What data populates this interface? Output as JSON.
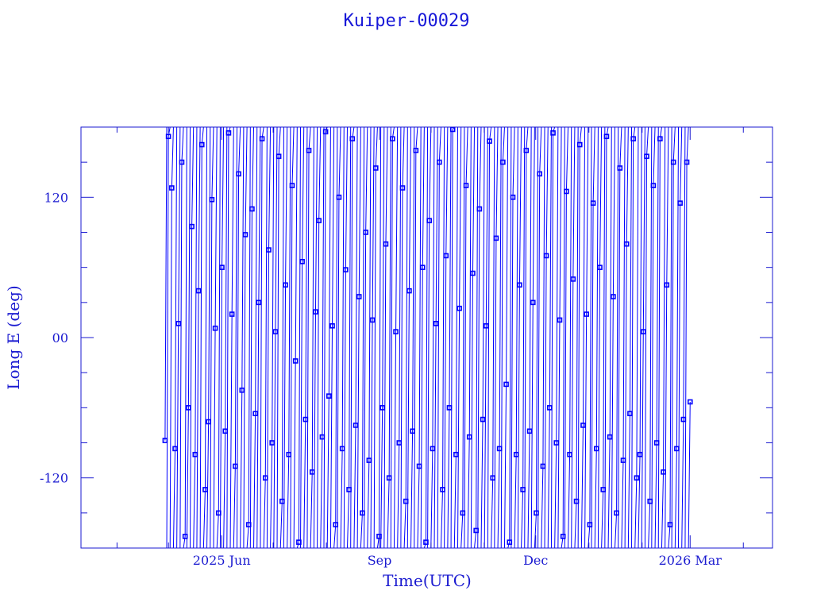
{
  "chart_data": {
    "type": "line",
    "title": "Kuiper-00029",
    "xlabel": "Time(UTC)",
    "ylabel": "Long E (deg)",
    "xlim": [
      "2025-03-11",
      "2026-04-18"
    ],
    "ylim": [
      -180,
      180
    ],
    "x_tick_labels": [
      {
        "date": "2025-06-01",
        "label": "2025 Jun"
      },
      {
        "date": "2025-09-01",
        "label": "Sep"
      },
      {
        "date": "2025-12-01",
        "label": "Dec"
      },
      {
        "date": "2026-03-01",
        "label": "2026 Mar"
      }
    ],
    "y_ticks": [
      120,
      0,
      -120
    ],
    "y_tick_labels": [
      "120",
      "00",
      "-120"
    ],
    "grid": false,
    "color": "#0000ff",
    "markers": "square",
    "series": [
      {
        "time_start": "2025-04-29",
        "time_end": "2026-03-01",
        "lon": [
          -88,
          172,
          128,
          -95,
          12,
          150,
          -170,
          -60,
          95,
          -100,
          40,
          165,
          -130,
          -72,
          118,
          8,
          -150,
          60,
          -80,
          175,
          20,
          -110,
          140,
          -45,
          88,
          -160,
          110,
          -65,
          30,
          170,
          -120,
          75,
          -90,
          5,
          155,
          -140,
          45,
          -100,
          130,
          -20,
          -175,
          65,
          -70,
          160,
          -115,
          22,
          100,
          -85,
          176,
          -50,
          10,
          -160,
          120,
          -95,
          58,
          -130,
          170,
          -75,
          35,
          -150,
          90,
          -105,
          15,
          145,
          -170,
          -60,
          80,
          -120,
          170,
          5,
          -90,
          128,
          -140,
          40,
          -80,
          160,
          -110,
          60,
          -175,
          100,
          -95,
          12,
          150,
          -130,
          70,
          -60,
          178,
          -100,
          25,
          -150,
          130,
          -85,
          55,
          -165,
          110,
          -70,
          10,
          168,
          -120,
          85,
          -95,
          150,
          -40,
          -175,
          120,
          -100,
          45,
          -130,
          160,
          -80,
          30,
          -150,
          140,
          -110,
          70,
          -60,
          175,
          -90,
          15,
          -170,
          125,
          -100,
          50,
          -140,
          165,
          -75,
          20,
          -160,
          115,
          -95,
          60,
          -130,
          172,
          -85,
          35,
          -150,
          145,
          -105,
          80,
          -65,
          170,
          -120,
          -100,
          5,
          155,
          -140,
          130,
          -90,
          170,
          -115,
          45,
          -160,
          150,
          -95,
          115,
          -70,
          150,
          -55
        ]
      }
    ]
  }
}
